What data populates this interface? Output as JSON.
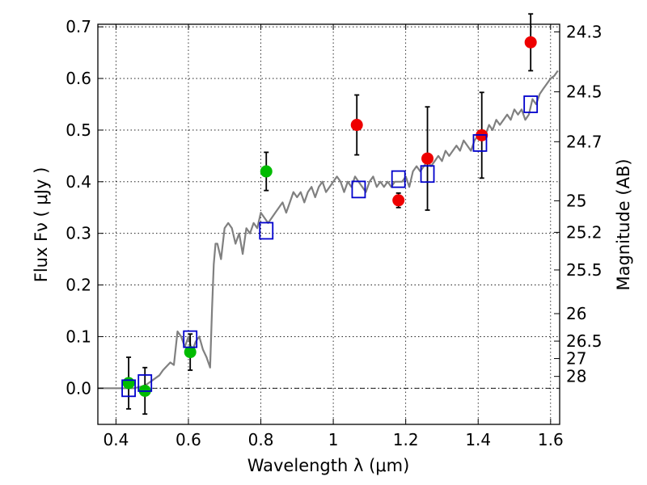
{
  "chart_data": {
    "type": "scatter",
    "xlabel": "Wavelength  λ (μm)",
    "ylabel": "Flux  Fν  ( μJy )",
    "right_ylabel": "Magnitude (AB)",
    "xlim": [
      0.35,
      1.625
    ],
    "ylim": [
      -0.07,
      0.705
    ],
    "x_ticks": [
      0.4,
      0.6,
      0.8,
      1.0,
      1.2,
      1.4,
      1.6
    ],
    "x_tick_labels": [
      "0.4",
      "0.6",
      "0.8",
      "1",
      "1.2",
      "1.4",
      "1.6"
    ],
    "y_ticks": [
      0.0,
      0.1,
      0.2,
      0.3,
      0.4,
      0.5,
      0.6,
      0.7
    ],
    "y_tick_labels": [
      "0.0",
      "0.1",
      "0.2",
      "0.3",
      "0.4",
      "0.5",
      "0.6",
      "0.7"
    ],
    "right_ticks": [
      {
        "label": "24.3",
        "flux": 0.6902
      },
      {
        "label": "24.5",
        "flux": 0.5741
      },
      {
        "label": "24.7",
        "flux": 0.4775
      },
      {
        "label": "25",
        "flux": 0.3631
      },
      {
        "label": "25.2",
        "flux": 0.302
      },
      {
        "label": "25.5",
        "flux": 0.2291
      },
      {
        "label": "26",
        "flux": 0.1445
      },
      {
        "label": "26.5",
        "flux": 0.0912
      },
      {
        "label": "27",
        "flux": 0.0575
      },
      {
        "label": "28",
        "flux": 0.0229
      }
    ],
    "grid": true,
    "series": [
      {
        "name": "model spectrum",
        "kind": "line",
        "color": "#808080",
        "x": [
          0.35,
          0.4,
          0.42,
          0.45,
          0.48,
          0.5,
          0.52,
          0.53,
          0.55,
          0.56,
          0.57,
          0.58,
          0.59,
          0.6,
          0.61,
          0.62,
          0.63,
          0.64,
          0.65,
          0.66,
          0.665,
          0.67,
          0.675,
          0.68,
          0.69,
          0.7,
          0.71,
          0.72,
          0.73,
          0.74,
          0.75,
          0.76,
          0.77,
          0.78,
          0.79,
          0.8,
          0.81,
          0.82,
          0.83,
          0.84,
          0.85,
          0.86,
          0.87,
          0.88,
          0.89,
          0.9,
          0.91,
          0.92,
          0.93,
          0.94,
          0.95,
          0.96,
          0.97,
          0.98,
          0.99,
          1.0,
          1.01,
          1.02,
          1.03,
          1.04,
          1.05,
          1.06,
          1.07,
          1.08,
          1.09,
          1.1,
          1.11,
          1.12,
          1.13,
          1.14,
          1.15,
          1.16,
          1.17,
          1.18,
          1.19,
          1.2,
          1.21,
          1.22,
          1.23,
          1.24,
          1.25,
          1.26,
          1.27,
          1.28,
          1.29,
          1.3,
          1.31,
          1.32,
          1.33,
          1.34,
          1.35,
          1.36,
          1.37,
          1.38,
          1.39,
          1.4,
          1.41,
          1.42,
          1.43,
          1.44,
          1.45,
          1.46,
          1.47,
          1.48,
          1.49,
          1.5,
          1.51,
          1.52,
          1.53,
          1.54,
          1.55,
          1.56,
          1.57,
          1.58,
          1.59,
          1.6,
          1.61,
          1.62
        ],
        "y": [
          0.0,
          0.0,
          0.0,
          0.0,
          0.005,
          0.015,
          0.025,
          0.035,
          0.05,
          0.045,
          0.11,
          0.1,
          0.08,
          0.1,
          0.07,
          0.09,
          0.1,
          0.075,
          0.06,
          0.04,
          0.15,
          0.24,
          0.28,
          0.28,
          0.25,
          0.31,
          0.32,
          0.31,
          0.28,
          0.3,
          0.26,
          0.31,
          0.3,
          0.32,
          0.31,
          0.34,
          0.33,
          0.32,
          0.33,
          0.34,
          0.35,
          0.36,
          0.34,
          0.36,
          0.38,
          0.37,
          0.38,
          0.36,
          0.38,
          0.39,
          0.37,
          0.39,
          0.4,
          0.38,
          0.39,
          0.4,
          0.41,
          0.4,
          0.38,
          0.4,
          0.39,
          0.41,
          0.4,
          0.39,
          0.38,
          0.4,
          0.41,
          0.39,
          0.4,
          0.39,
          0.4,
          0.39,
          0.4,
          0.4,
          0.4,
          0.41,
          0.39,
          0.42,
          0.43,
          0.42,
          0.43,
          0.44,
          0.43,
          0.44,
          0.45,
          0.44,
          0.46,
          0.45,
          0.46,
          0.47,
          0.46,
          0.48,
          0.47,
          0.46,
          0.48,
          0.49,
          0.5,
          0.49,
          0.51,
          0.5,
          0.52,
          0.51,
          0.52,
          0.53,
          0.52,
          0.54,
          0.53,
          0.54,
          0.52,
          0.53,
          0.56,
          0.55,
          0.57,
          0.58,
          0.59,
          0.6,
          0.605,
          0.615
        ]
      },
      {
        "name": "green measurements",
        "kind": "errorbar",
        "color": "#00bb00",
        "points": [
          {
            "x": 0.435,
            "y": 0.01,
            "err": 0.05
          },
          {
            "x": 0.48,
            "y": -0.005,
            "err": 0.045
          },
          {
            "x": 0.605,
            "y": 0.07,
            "err": 0.035
          },
          {
            "x": 0.815,
            "y": 0.42,
            "err": 0.037
          }
        ]
      },
      {
        "name": "red measurements",
        "kind": "errorbar",
        "color": "#ee0000",
        "points": [
          {
            "x": 1.065,
            "y": 0.51,
            "err": 0.058
          },
          {
            "x": 1.18,
            "y": 0.364,
            "err": 0.014
          },
          {
            "x": 1.26,
            "y": 0.445,
            "err": 0.1
          },
          {
            "x": 1.41,
            "y": 0.49,
            "err": 0.083
          },
          {
            "x": 1.545,
            "y": 0.67,
            "err": 0.055
          }
        ]
      },
      {
        "name": "model photometry",
        "kind": "open-square",
        "color": "#0000cc",
        "points": [
          {
            "x": 0.435,
            "y": 0.0
          },
          {
            "x": 0.48,
            "y": 0.01
          },
          {
            "x": 0.605,
            "y": 0.095
          },
          {
            "x": 0.815,
            "y": 0.305
          },
          {
            "x": 1.07,
            "y": 0.385
          },
          {
            "x": 1.18,
            "y": 0.405
          },
          {
            "x": 1.26,
            "y": 0.415
          },
          {
            "x": 1.405,
            "y": 0.475
          },
          {
            "x": 1.545,
            "y": 0.55
          }
        ]
      }
    ]
  }
}
